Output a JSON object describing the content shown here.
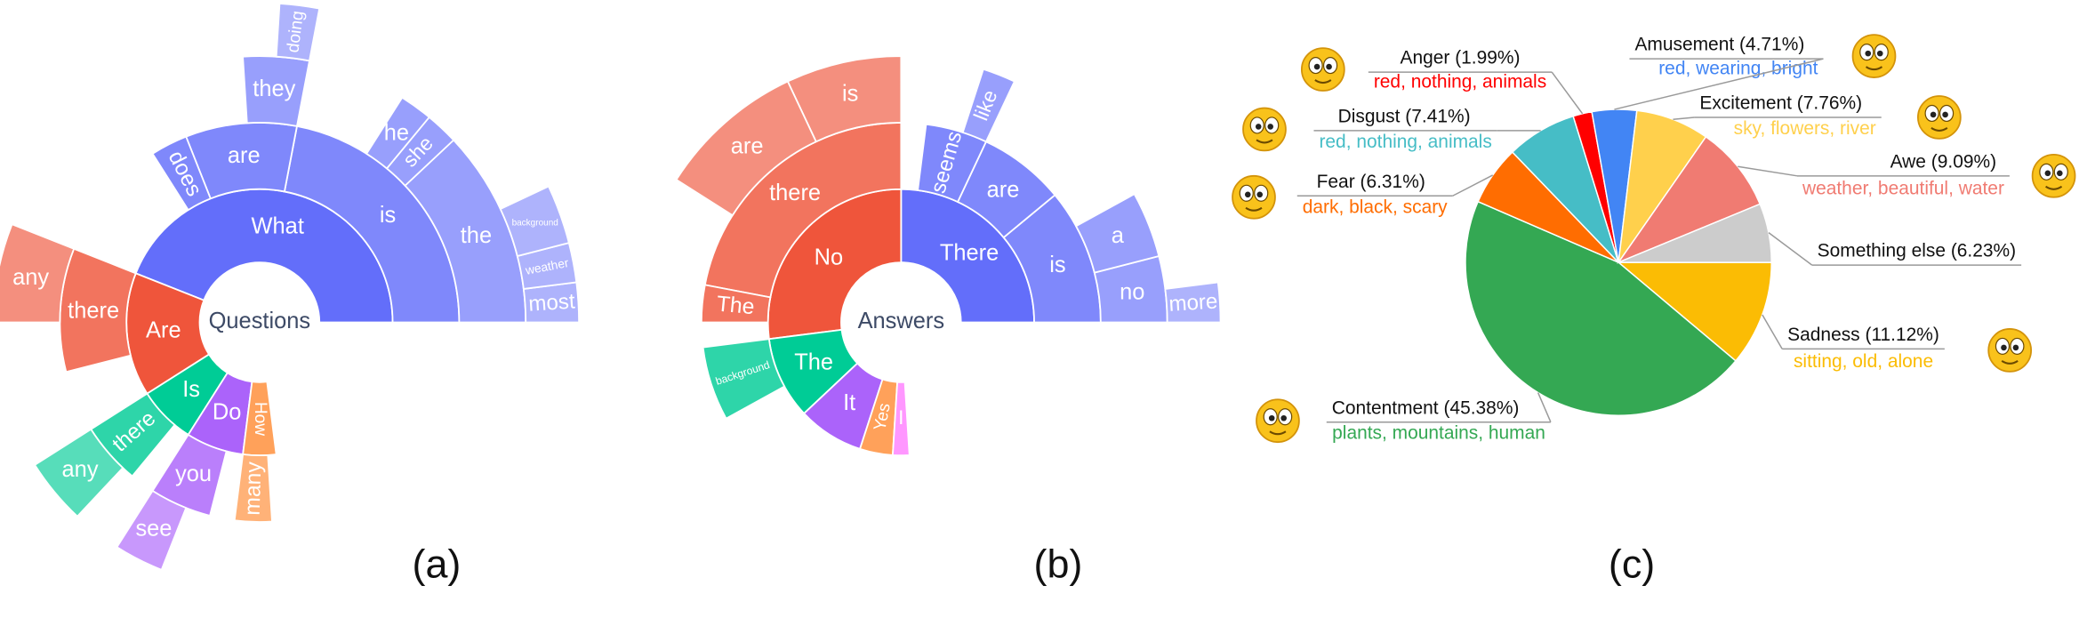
{
  "chart_data": [
    {
      "type": "sunburst",
      "caption": "(a)",
      "center_label": "Questions",
      "nodes": [
        {
          "name": "What",
          "value": 44,
          "color": "#636efa",
          "children": [
            {
              "name": "is",
              "value": 22,
              "children": [
                {
                  "name": "the",
                  "value": 12,
                  "children": [
                    {
                      "name": "most",
                      "value": 2
                    },
                    {
                      "name": "weather",
                      "value": 2
                    },
                    {
                      "name": "background",
                      "value": 3
                    }
                  ]
                },
                {
                  "name": "she",
                  "value": 2
                },
                {
                  "name": "he",
                  "value": 2
                }
              ]
            },
            {
              "name": "are",
              "value": 9,
              "children": [
                {
                  "name": "they",
                  "value": 4,
                  "children": [
                    {
                      "name": "doing",
                      "value": 2
                    }
                  ]
                }
              ]
            },
            {
              "name": "does",
              "value": 3
            }
          ]
        },
        {
          "name": "Are",
          "value": 15,
          "color": "#ef553b",
          "children": [
            {
              "name": "there",
              "value": 10,
              "children": [
                {
                  "name": "any",
                  "value": 6
                }
              ]
            }
          ]
        },
        {
          "name": "Is",
          "value": 7,
          "color": "#00cc96",
          "children": [
            {
              "name": "there",
              "value": 5,
              "children": [
                {
                  "name": "any",
                  "value": 4
                }
              ]
            }
          ]
        },
        {
          "name": "Do",
          "value": 7,
          "color": "#ab63fa",
          "children": [
            {
              "name": "you",
              "value": 5,
              "children": [
                {
                  "name": "see",
                  "value": 3
                }
              ]
            }
          ]
        },
        {
          "name": "How",
          "value": 4,
          "color": "#ffa15a",
          "children": [
            {
              "name": "many",
              "value": 3
            }
          ]
        }
      ]
    },
    {
      "type": "sunburst",
      "caption": "(b)",
      "center_label": "Answers",
      "nodes": [
        {
          "name": "There",
          "value": 25,
          "color": "#636efa",
          "children": [
            {
              "name": "is",
              "value": 11,
              "children": [
                {
                  "name": "no",
                  "value": 4,
                  "children": [
                    {
                      "name": "more",
                      "value": 2
                    }
                  ]
                },
                {
                  "name": "a",
                  "value": 4
                }
              ]
            },
            {
              "name": "are",
              "value": 7
            },
            {
              "name": "seems",
              "value": 5,
              "children": [
                {
                  "name": "like",
                  "value": 2
                }
              ]
            }
          ]
        },
        {
          "name": "No",
          "value": 27,
          "color": "#ef553b",
          "children": [
            {
              "name": "there",
              "value": 22,
              "children": [
                {
                  "name": "is",
                  "value": 7
                },
                {
                  "name": "are",
                  "value": 9
                }
              ]
            },
            {
              "name": "The",
              "value": 3
            }
          ]
        },
        {
          "name": "The",
          "value": 10,
          "color": "#00cc96",
          "children": [
            {
              "name": "background",
              "value": 6
            }
          ]
        },
        {
          "name": "It",
          "value": 8,
          "color": "#ab63fa"
        },
        {
          "name": "Yes",
          "value": 4,
          "color": "#ffa15a"
        },
        {
          "name": "I",
          "value": 2,
          "color": "#ff97ff"
        }
      ]
    },
    {
      "type": "pie",
      "caption": "(c)",
      "values": [
        11.12,
        45.38,
        6.31,
        7.41,
        1.99,
        4.71,
        7.76,
        9.09,
        6.23
      ],
      "value_labels": [
        "Sadness (11.12%)",
        "Contentment (45.38%)",
        "Fear (6.31%)",
        "Disgust (7.41%)",
        "Anger (1.99%)",
        "Amusement (4.71%)",
        "Excitement (7.76%)",
        "Awe (9.09%)",
        "Something else (6.23%)"
      ],
      "keywords": [
        "sitting, old, alone",
        "plants, mountains, human",
        "dark, black, scary",
        "red, nothing, animals",
        "red, nothing, animals",
        "red, wearing, bright",
        "sky, flowers, river",
        "weather, beautiful, water",
        null
      ],
      "colors": [
        "#fbbc04",
        "#34a853",
        "#ff6d01",
        "#46bdc6",
        "#ff0000",
        "#4285f4",
        "#ffd04c",
        "#f07b72",
        "#cccccc"
      ]
    }
  ]
}
